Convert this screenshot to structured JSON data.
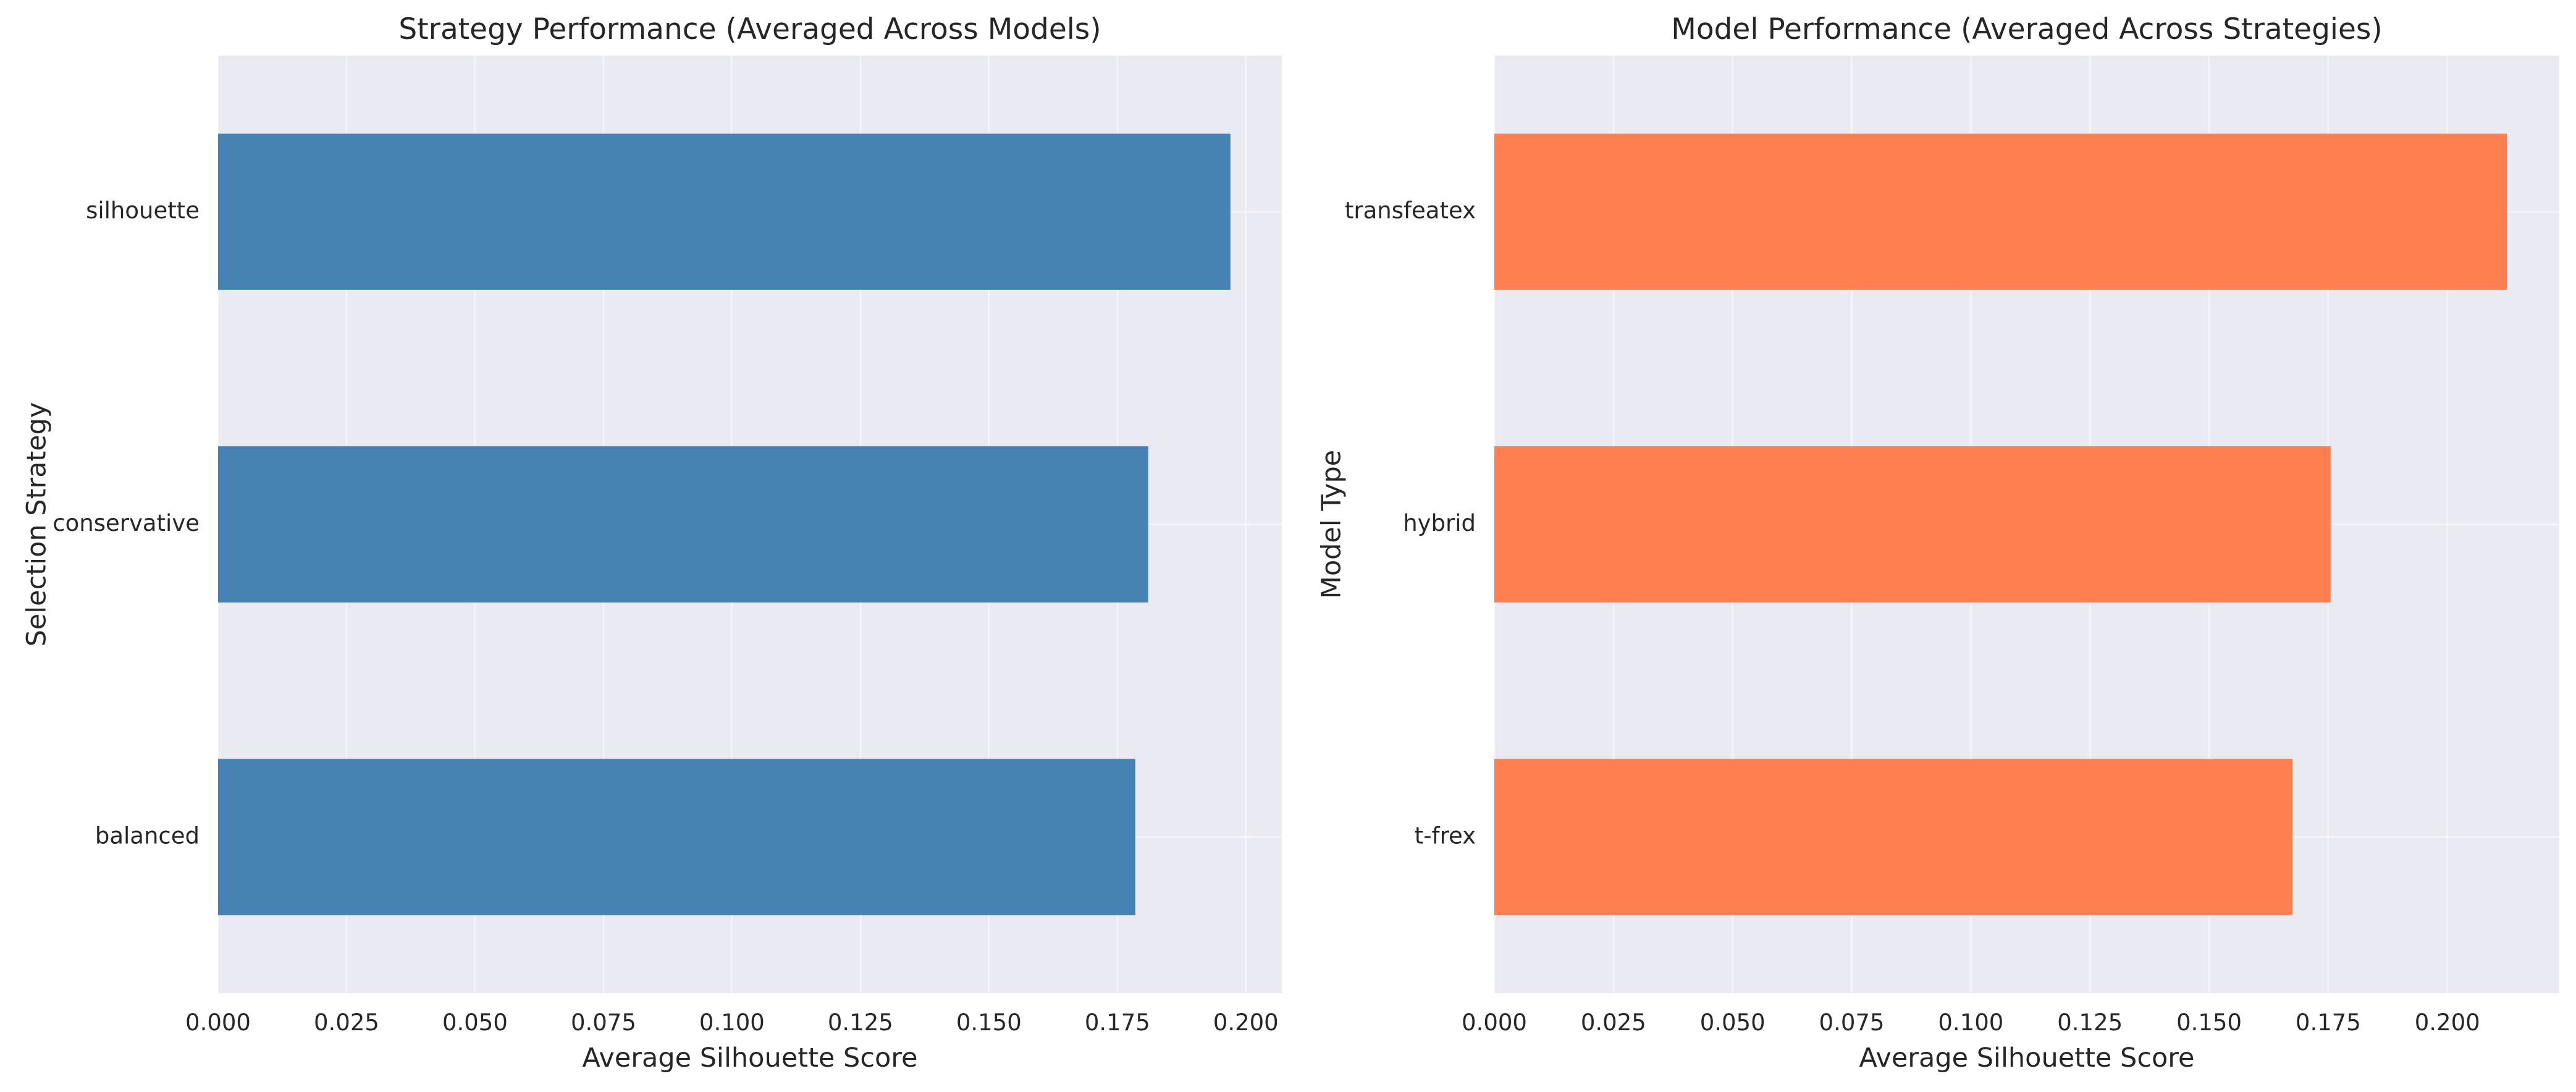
{
  "chart_data": [
    {
      "type": "bar",
      "orientation": "horizontal",
      "title": "Strategy Performance (Averaged Across Models)",
      "xlabel": "Average Silhouette Score",
      "ylabel": "Selection Strategy",
      "categories": [
        "silhouette",
        "conservative",
        "balanced"
      ],
      "values": [
        0.197,
        0.181,
        0.1785
      ],
      "xlim": [
        0,
        0.207
      ],
      "xticks": [
        0.0,
        0.025,
        0.05,
        0.075,
        0.1,
        0.125,
        0.15,
        0.175,
        0.2
      ],
      "xtick_labels": [
        "0.000",
        "0.025",
        "0.050",
        "0.075",
        "0.100",
        "0.125",
        "0.150",
        "0.175",
        "0.200"
      ],
      "bar_color": "#4682b4",
      "grid": true
    },
    {
      "type": "bar",
      "orientation": "horizontal",
      "title": "Model Performance (Averaged Across Strategies)",
      "xlabel": "Average Silhouette Score",
      "ylabel": "Model Type",
      "categories": [
        "transfeatex",
        "hybrid",
        "t-frex"
      ],
      "values": [
        0.2125,
        0.1755,
        0.1675
      ],
      "xlim": [
        0,
        0.2235
      ],
      "xticks": [
        0.0,
        0.025,
        0.05,
        0.075,
        0.1,
        0.125,
        0.15,
        0.175,
        0.2
      ],
      "xtick_labels": [
        "0.000",
        "0.025",
        "0.050",
        "0.075",
        "0.100",
        "0.125",
        "0.150",
        "0.175",
        "0.200"
      ],
      "bar_color": "#ff7f50",
      "grid": true
    }
  ]
}
